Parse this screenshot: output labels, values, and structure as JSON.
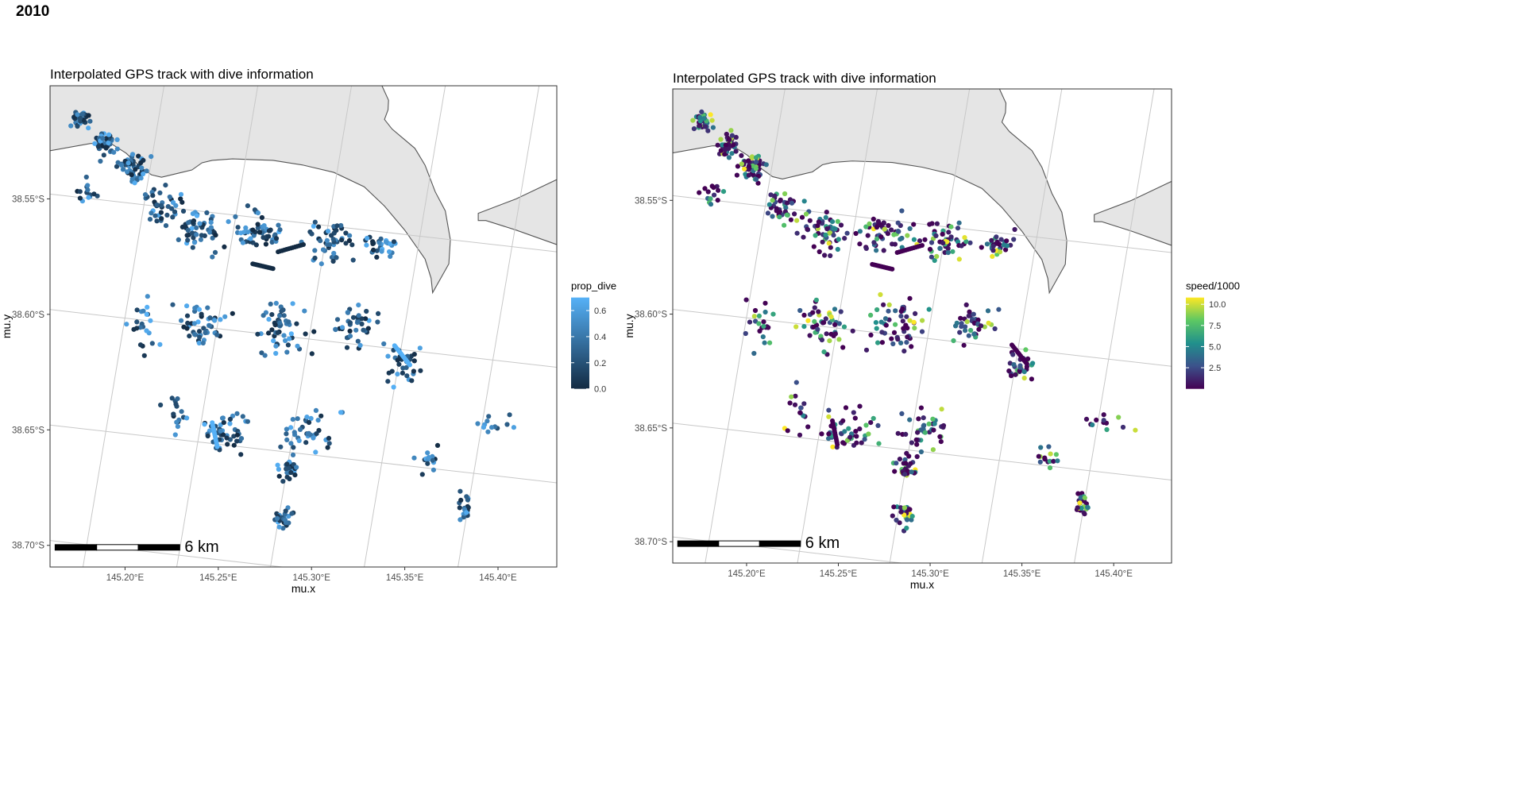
{
  "page_title": "2010",
  "colors": {
    "land": "#e5e5e5",
    "coast": "#555555",
    "grid": "#c8c8c8",
    "panel_border": "#333333",
    "prop_low": "#132b43",
    "prop_high": "#56b1f7",
    "viridis": [
      "#440154",
      "#3b528b",
      "#21908c",
      "#5dc863",
      "#fde725"
    ]
  },
  "chart_data": [
    {
      "type": "map-scatter",
      "title": "Interpolated GPS track with dive information",
      "xlabel": "mu.x",
      "ylabel": "mu.y",
      "x_ticks": [
        "145.20°E",
        "145.25°E",
        "145.30°E",
        "145.35°E",
        "145.40°E"
      ],
      "y_ticks": [
        "38.55°S",
        "38.60°S",
        "38.65°S",
        "38.70°S"
      ],
      "xlim": [
        145.162,
        145.438
      ],
      "ylim": [
        -38.707,
        -38.504
      ],
      "color_variable": "prop_dive",
      "legend": {
        "title": "prop_dive",
        "ticks": [
          "0.6",
          "0.4",
          "0.2",
          "0.0"
        ],
        "values": [
          0.6,
          0.4,
          0.2,
          0.0
        ],
        "range": [
          0,
          0.7
        ],
        "placement": "right"
      },
      "scalebar": {
        "label": "6 km",
        "placement": "bottom-left"
      },
      "seed": 20101
    },
    {
      "type": "map-scatter",
      "title": "Interpolated GPS track with dive information",
      "xlabel": "mu.x",
      "ylabel": "mu.y",
      "x_ticks": [
        "145.20°E",
        "145.25°E",
        "145.30°E",
        "145.35°E",
        "145.40°E"
      ],
      "y_ticks": [
        "38.55°S",
        "38.60°S",
        "38.65°S",
        "38.70°S"
      ],
      "xlim": [
        145.162,
        145.438
      ],
      "ylim": [
        -38.707,
        -38.504
      ],
      "color_variable": "speed/1000",
      "legend": {
        "title": "speed/1000",
        "ticks": [
          "10.0",
          "7.5",
          "5.0",
          "2.5"
        ],
        "values": [
          10.0,
          7.5,
          5.0,
          2.5
        ],
        "range": [
          0,
          10.8
        ],
        "placement": "right"
      },
      "scalebar": {
        "label": "6 km",
        "placement": "bottom-left"
      },
      "seed": 20102
    }
  ]
}
